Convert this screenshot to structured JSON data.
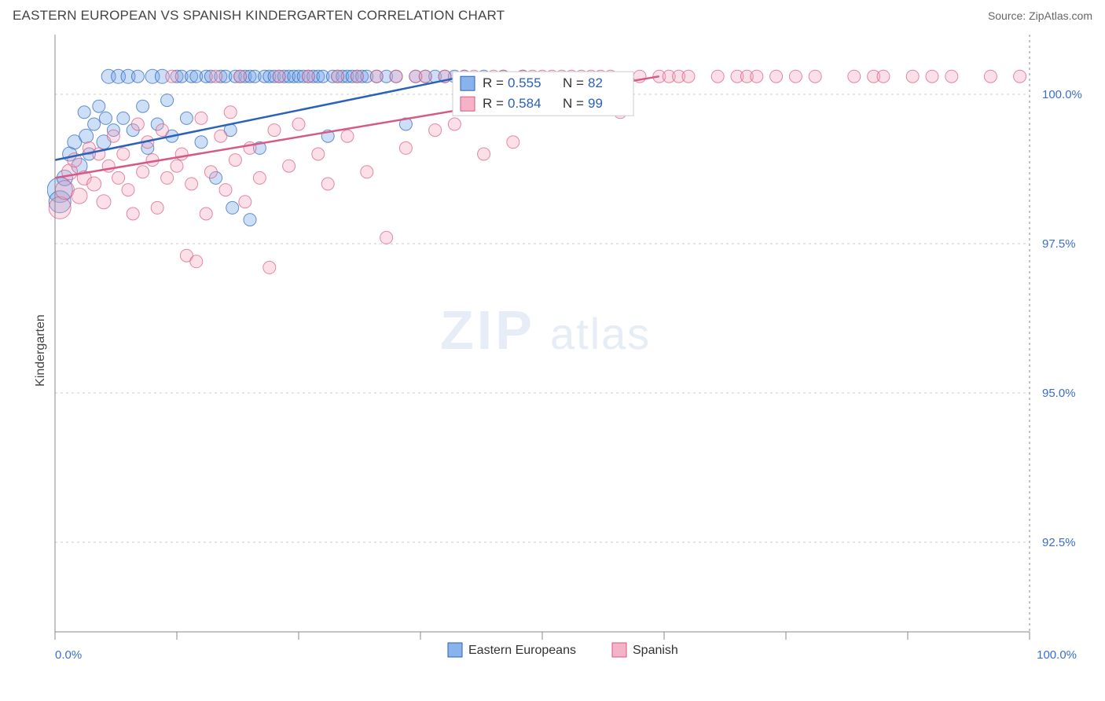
{
  "header": {
    "title": "EASTERN EUROPEAN VS SPANISH KINDERGARTEN CORRELATION CHART",
    "source_label": "Source:",
    "source_name": "ZipAtlas.com"
  },
  "ylabel": "Kindergarten",
  "watermark": {
    "part1": "ZIP",
    "part2": "atlas"
  },
  "chart": {
    "type": "scatter",
    "xlim": [
      0,
      100
    ],
    "ylim": [
      91,
      101
    ],
    "background_color": "#ffffff",
    "grid_color": "#cccccc",
    "border_color": "#888888",
    "xtick_labels": {
      "0": "0.0%",
      "100": "100.0%"
    },
    "ytick_labels": [
      {
        "value": 92.5,
        "label": "92.5%"
      },
      {
        "value": 95.0,
        "label": "95.0%"
      },
      {
        "value": 97.5,
        "label": "97.5%"
      },
      {
        "value": 100.0,
        "label": "100.0%"
      }
    ],
    "xtick_positions": [
      0,
      12.5,
      25,
      37.5,
      50,
      62.5,
      75,
      87.5,
      100
    ],
    "stats_box": {
      "rows": [
        {
          "swatch": "blue",
          "r_label": "R =",
          "r": "0.555",
          "n_label": "N =",
          "n": "82"
        },
        {
          "swatch": "pink",
          "r_label": "R =",
          "r": "0.584",
          "n_label": "N =",
          "n": "99"
        }
      ]
    },
    "legend": [
      {
        "swatch": "blue",
        "label": "Eastern Europeans"
      },
      {
        "swatch": "pink",
        "label": "Spanish"
      }
    ],
    "series": {
      "blue": {
        "color_fill": "#6fa3e8",
        "color_stroke": "#2a62b8",
        "trend": {
          "x1": 0,
          "y1": 98.9,
          "x2": 42,
          "y2": 100.3
        },
        "points": [
          {
            "x": 0.5,
            "y": 98.4,
            "r": 16
          },
          {
            "x": 0.5,
            "y": 98.2,
            "r": 14
          },
          {
            "x": 1,
            "y": 98.6,
            "r": 10
          },
          {
            "x": 1.5,
            "y": 99.0,
            "r": 9
          },
          {
            "x": 2,
            "y": 99.2,
            "r": 9
          },
          {
            "x": 2.5,
            "y": 98.8,
            "r": 10
          },
          {
            "x": 3,
            "y": 99.7,
            "r": 8
          },
          {
            "x": 3.2,
            "y": 99.3,
            "r": 9
          },
          {
            "x": 3.5,
            "y": 99.0,
            "r": 8
          },
          {
            "x": 4,
            "y": 99.5,
            "r": 8
          },
          {
            "x": 4.5,
            "y": 99.8,
            "r": 8
          },
          {
            "x": 5,
            "y": 99.2,
            "r": 9
          },
          {
            "x": 5.2,
            "y": 99.6,
            "r": 8
          },
          {
            "x": 5.5,
            "y": 100.3,
            "r": 9
          },
          {
            "x": 6,
            "y": 99.4,
            "r": 8
          },
          {
            "x": 6.5,
            "y": 100.3,
            "r": 9
          },
          {
            "x": 7,
            "y": 99.6,
            "r": 8
          },
          {
            "x": 7.5,
            "y": 100.3,
            "r": 9
          },
          {
            "x": 8,
            "y": 99.4,
            "r": 8
          },
          {
            "x": 8.5,
            "y": 100.3,
            "r": 8
          },
          {
            "x": 9,
            "y": 99.8,
            "r": 8
          },
          {
            "x": 9.5,
            "y": 99.1,
            "r": 8
          },
          {
            "x": 10,
            "y": 100.3,
            "r": 9
          },
          {
            "x": 10.5,
            "y": 99.5,
            "r": 8
          },
          {
            "x": 11,
            "y": 100.3,
            "r": 9
          },
          {
            "x": 11.5,
            "y": 99.9,
            "r": 8
          },
          {
            "x": 12,
            "y": 99.3,
            "r": 8
          },
          {
            "x": 12.5,
            "y": 100.3,
            "r": 8
          },
          {
            "x": 13,
            "y": 100.3,
            "r": 8
          },
          {
            "x": 13.5,
            "y": 99.6,
            "r": 8
          },
          {
            "x": 14,
            "y": 100.3,
            "r": 8
          },
          {
            "x": 14.5,
            "y": 100.3,
            "r": 8
          },
          {
            "x": 15,
            "y": 99.2,
            "r": 8
          },
          {
            "x": 15.5,
            "y": 100.3,
            "r": 8
          },
          {
            "x": 16,
            "y": 100.3,
            "r": 8
          },
          {
            "x": 16.5,
            "y": 98.6,
            "r": 8
          },
          {
            "x": 17,
            "y": 100.3,
            "r": 8
          },
          {
            "x": 17.5,
            "y": 100.3,
            "r": 8
          },
          {
            "x": 18,
            "y": 99.4,
            "r": 8
          },
          {
            "x": 18.2,
            "y": 98.1,
            "r": 8
          },
          {
            "x": 18.5,
            "y": 100.3,
            "r": 8
          },
          {
            "x": 19,
            "y": 100.3,
            "r": 8
          },
          {
            "x": 19.5,
            "y": 100.3,
            "r": 8
          },
          {
            "x": 20,
            "y": 97.9,
            "r": 8
          },
          {
            "x": 20,
            "y": 100.3,
            "r": 8
          },
          {
            "x": 20.5,
            "y": 100.3,
            "r": 8
          },
          {
            "x": 21,
            "y": 99.1,
            "r": 8
          },
          {
            "x": 21.5,
            "y": 100.3,
            "r": 8
          },
          {
            "x": 22,
            "y": 100.3,
            "r": 8
          },
          {
            "x": 22.5,
            "y": 100.3,
            "r": 8
          },
          {
            "x": 23,
            "y": 100.3,
            "r": 8
          },
          {
            "x": 23.5,
            "y": 100.3,
            "r": 8
          },
          {
            "x": 24,
            "y": 100.3,
            "r": 8
          },
          {
            "x": 24.5,
            "y": 100.3,
            "r": 8
          },
          {
            "x": 25,
            "y": 100.3,
            "r": 8
          },
          {
            "x": 25.5,
            "y": 100.3,
            "r": 8
          },
          {
            "x": 26,
            "y": 100.3,
            "r": 8
          },
          {
            "x": 26.5,
            "y": 100.3,
            "r": 8
          },
          {
            "x": 27,
            "y": 100.3,
            "r": 8
          },
          {
            "x": 27.5,
            "y": 100.3,
            "r": 8
          },
          {
            "x": 28,
            "y": 99.3,
            "r": 8
          },
          {
            "x": 28.5,
            "y": 100.3,
            "r": 8
          },
          {
            "x": 29,
            "y": 100.3,
            "r": 8
          },
          {
            "x": 29.5,
            "y": 100.3,
            "r": 8
          },
          {
            "x": 30,
            "y": 100.3,
            "r": 8
          },
          {
            "x": 30.5,
            "y": 100.3,
            "r": 8
          },
          {
            "x": 31,
            "y": 100.3,
            "r": 8
          },
          {
            "x": 31.5,
            "y": 100.3,
            "r": 8
          },
          {
            "x": 32,
            "y": 100.3,
            "r": 8
          },
          {
            "x": 33,
            "y": 100.3,
            "r": 8
          },
          {
            "x": 34,
            "y": 100.3,
            "r": 8
          },
          {
            "x": 35,
            "y": 100.3,
            "r": 8
          },
          {
            "x": 36,
            "y": 99.5,
            "r": 8
          },
          {
            "x": 37,
            "y": 100.3,
            "r": 8
          },
          {
            "x": 38,
            "y": 100.3,
            "r": 8
          },
          {
            "x": 39,
            "y": 100.3,
            "r": 8
          },
          {
            "x": 40,
            "y": 100.3,
            "r": 8
          },
          {
            "x": 41,
            "y": 100.3,
            "r": 8
          },
          {
            "x": 42,
            "y": 100.3,
            "r": 8
          },
          {
            "x": 44,
            "y": 100.3,
            "r": 8
          },
          {
            "x": 46,
            "y": 100.3,
            "r": 8
          },
          {
            "x": 48,
            "y": 100.3,
            "r": 8
          }
        ]
      },
      "pink": {
        "color_fill": "#f5a7be",
        "color_stroke": "#d65a85",
        "trend": {
          "x1": 0,
          "y1": 98.6,
          "x2": 62,
          "y2": 100.3
        },
        "points": [
          {
            "x": 0.5,
            "y": 98.1,
            "r": 14
          },
          {
            "x": 1,
            "y": 98.4,
            "r": 12
          },
          {
            "x": 1.5,
            "y": 98.7,
            "r": 10
          },
          {
            "x": 2,
            "y": 98.9,
            "r": 9
          },
          {
            "x": 2.5,
            "y": 98.3,
            "r": 10
          },
          {
            "x": 3,
            "y": 98.6,
            "r": 9
          },
          {
            "x": 3.5,
            "y": 99.1,
            "r": 8
          },
          {
            "x": 4,
            "y": 98.5,
            "r": 9
          },
          {
            "x": 4.5,
            "y": 99.0,
            "r": 8
          },
          {
            "x": 5,
            "y": 98.2,
            "r": 9
          },
          {
            "x": 5.5,
            "y": 98.8,
            "r": 8
          },
          {
            "x": 6,
            "y": 99.3,
            "r": 8
          },
          {
            "x": 6.5,
            "y": 98.6,
            "r": 8
          },
          {
            "x": 7,
            "y": 99.0,
            "r": 8
          },
          {
            "x": 7.5,
            "y": 98.4,
            "r": 8
          },
          {
            "x": 8,
            "y": 98.0,
            "r": 8
          },
          {
            "x": 8.5,
            "y": 99.5,
            "r": 8
          },
          {
            "x": 9,
            "y": 98.7,
            "r": 8
          },
          {
            "x": 9.5,
            "y": 99.2,
            "r": 8
          },
          {
            "x": 10,
            "y": 98.9,
            "r": 8
          },
          {
            "x": 10.5,
            "y": 98.1,
            "r": 8
          },
          {
            "x": 11,
            "y": 99.4,
            "r": 8
          },
          {
            "x": 11.5,
            "y": 98.6,
            "r": 8
          },
          {
            "x": 12,
            "y": 100.3,
            "r": 8
          },
          {
            "x": 12.5,
            "y": 98.8,
            "r": 8
          },
          {
            "x": 13,
            "y": 99.0,
            "r": 8
          },
          {
            "x": 13.5,
            "y": 97.3,
            "r": 8
          },
          {
            "x": 14,
            "y": 98.5,
            "r": 8
          },
          {
            "x": 14.5,
            "y": 97.2,
            "r": 8
          },
          {
            "x": 15,
            "y": 99.6,
            "r": 8
          },
          {
            "x": 15.5,
            "y": 98.0,
            "r": 8
          },
          {
            "x": 16,
            "y": 98.7,
            "r": 8
          },
          {
            "x": 16.5,
            "y": 100.3,
            "r": 8
          },
          {
            "x": 17,
            "y": 99.3,
            "r": 8
          },
          {
            "x": 17.5,
            "y": 98.4,
            "r": 8
          },
          {
            "x": 18,
            "y": 99.7,
            "r": 8
          },
          {
            "x": 18.5,
            "y": 98.9,
            "r": 8
          },
          {
            "x": 19,
            "y": 100.3,
            "r": 8
          },
          {
            "x": 19.5,
            "y": 98.2,
            "r": 8
          },
          {
            "x": 20,
            "y": 99.1,
            "r": 8
          },
          {
            "x": 21,
            "y": 98.6,
            "r": 8
          },
          {
            "x": 22,
            "y": 97.1,
            "r": 8
          },
          {
            "x": 22.5,
            "y": 99.4,
            "r": 8
          },
          {
            "x": 23,
            "y": 100.3,
            "r": 8
          },
          {
            "x": 24,
            "y": 98.8,
            "r": 8
          },
          {
            "x": 25,
            "y": 99.5,
            "r": 8
          },
          {
            "x": 26,
            "y": 100.3,
            "r": 8
          },
          {
            "x": 27,
            "y": 99.0,
            "r": 8
          },
          {
            "x": 28,
            "y": 98.5,
            "r": 8
          },
          {
            "x": 29,
            "y": 100.3,
            "r": 8
          },
          {
            "x": 30,
            "y": 99.3,
            "r": 8
          },
          {
            "x": 31,
            "y": 100.3,
            "r": 8
          },
          {
            "x": 32,
            "y": 98.7,
            "r": 8
          },
          {
            "x": 33,
            "y": 100.3,
            "r": 8
          },
          {
            "x": 34,
            "y": 97.6,
            "r": 8
          },
          {
            "x": 35,
            "y": 100.3,
            "r": 8
          },
          {
            "x": 36,
            "y": 99.1,
            "r": 8
          },
          {
            "x": 37,
            "y": 100.3,
            "r": 8
          },
          {
            "x": 38,
            "y": 100.3,
            "r": 8
          },
          {
            "x": 39,
            "y": 99.4,
            "r": 8
          },
          {
            "x": 40,
            "y": 100.3,
            "r": 8
          },
          {
            "x": 41,
            "y": 99.5,
            "r": 8
          },
          {
            "x": 42,
            "y": 100.3,
            "r": 8
          },
          {
            "x": 43,
            "y": 100.3,
            "r": 8
          },
          {
            "x": 44,
            "y": 99.0,
            "r": 8
          },
          {
            "x": 45,
            "y": 100.3,
            "r": 8
          },
          {
            "x": 46,
            "y": 100.3,
            "r": 8
          },
          {
            "x": 47,
            "y": 99.2,
            "r": 8
          },
          {
            "x": 48,
            "y": 100.3,
            "r": 8
          },
          {
            "x": 49,
            "y": 100.3,
            "r": 8
          },
          {
            "x": 50,
            "y": 100.3,
            "r": 8
          },
          {
            "x": 51,
            "y": 100.3,
            "r": 8
          },
          {
            "x": 52,
            "y": 100.3,
            "r": 8
          },
          {
            "x": 53,
            "y": 100.3,
            "r": 8
          },
          {
            "x": 54,
            "y": 100.3,
            "r": 8
          },
          {
            "x": 55,
            "y": 100.3,
            "r": 8
          },
          {
            "x": 56,
            "y": 100.3,
            "r": 8
          },
          {
            "x": 57,
            "y": 100.3,
            "r": 8
          },
          {
            "x": 58,
            "y": 99.7,
            "r": 8
          },
          {
            "x": 60,
            "y": 100.3,
            "r": 8
          },
          {
            "x": 62,
            "y": 100.3,
            "r": 8
          },
          {
            "x": 63,
            "y": 100.3,
            "r": 8
          },
          {
            "x": 64,
            "y": 100.3,
            "r": 8
          },
          {
            "x": 65,
            "y": 100.3,
            "r": 8
          },
          {
            "x": 68,
            "y": 100.3,
            "r": 8
          },
          {
            "x": 70,
            "y": 100.3,
            "r": 8
          },
          {
            "x": 71,
            "y": 100.3,
            "r": 8
          },
          {
            "x": 72,
            "y": 100.3,
            "r": 8
          },
          {
            "x": 74,
            "y": 100.3,
            "r": 8
          },
          {
            "x": 76,
            "y": 100.3,
            "r": 8
          },
          {
            "x": 78,
            "y": 100.3,
            "r": 8
          },
          {
            "x": 82,
            "y": 100.3,
            "r": 8
          },
          {
            "x": 84,
            "y": 100.3,
            "r": 8
          },
          {
            "x": 85,
            "y": 100.3,
            "r": 8
          },
          {
            "x": 88,
            "y": 100.3,
            "r": 8
          },
          {
            "x": 90,
            "y": 100.3,
            "r": 8
          },
          {
            "x": 92,
            "y": 100.3,
            "r": 8
          },
          {
            "x": 96,
            "y": 100.3,
            "r": 8
          },
          {
            "x": 99,
            "y": 100.3,
            "r": 8
          }
        ]
      }
    }
  }
}
